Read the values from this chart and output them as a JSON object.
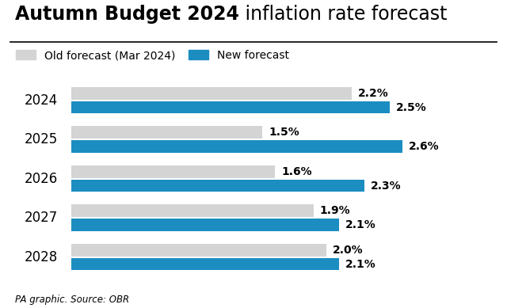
{
  "title_bold": "Autumn Budget 2024",
  "title_regular": " inflation rate forecast",
  "years": [
    "2024",
    "2025",
    "2026",
    "2027",
    "2028"
  ],
  "old_values": [
    2.2,
    1.5,
    1.6,
    1.9,
    2.0
  ],
  "new_values": [
    2.5,
    2.6,
    2.3,
    2.1,
    2.1
  ],
  "old_labels": [
    "2.2%",
    "1.5%",
    "1.6%",
    "1.9%",
    "2.0%"
  ],
  "new_labels": [
    "2.5%",
    "2.6%",
    "2.3%",
    "2.1%",
    "2.1%"
  ],
  "old_color": "#d4d4d4",
  "new_color": "#1b8dc0",
  "legend_old": "Old forecast (Mar 2024)",
  "legend_new": "New forecast",
  "footer": "PA graphic. Source: OBR",
  "xlim_max": 3.1,
  "bar_height": 0.32,
  "background_color": "#ffffff",
  "label_fontsize": 10,
  "year_fontsize": 12,
  "title_fontsize": 17,
  "legend_fontsize": 10
}
